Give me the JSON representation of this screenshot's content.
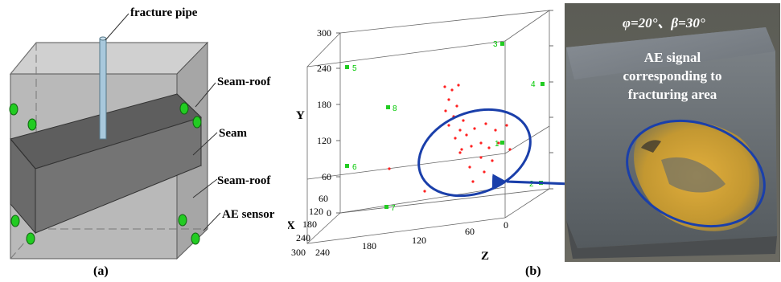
{
  "panel_a": {
    "caption": "(a)",
    "labels": {
      "fracture_pipe": "fracture pipe",
      "seam_roof_top": "Seam-roof",
      "seam": "Seam",
      "seam_roof_bottom": "Seam-roof",
      "ae_sensor": "AE sensor"
    },
    "colors": {
      "box": "#b8b8b8",
      "seam": "#6e6e6e",
      "sensor": "#22cc22",
      "pipe": "#9fc1d8"
    }
  },
  "panel_b": {
    "caption": "(b)",
    "axes": {
      "y_label": "Y",
      "x_label": "X",
      "z_label": "Z",
      "y_ticks": [
        "300",
        "240",
        "180",
        "120",
        "60",
        "0"
      ],
      "x_ticks": [
        "60",
        "120",
        "180",
        "240",
        "300"
      ],
      "z_ticks": [
        "240",
        "180",
        "120",
        "60",
        "0"
      ]
    },
    "sensor_labels": [
      "5",
      "8",
      "6",
      "7",
      "3",
      "4",
      "1",
      "2"
    ],
    "colors": {
      "events": "#ff2020",
      "sensors": "#22cc22",
      "ellipse": "#1a3faa"
    }
  },
  "panel_photo": {
    "angles": "φ=20°、β=30°",
    "annotation_line1": "AE signal",
    "annotation_line2": "corresponding to",
    "annotation_line3": "fracturing area",
    "colors": {
      "rock": "#7a7f84",
      "fracture_zone": "#d8a830",
      "ellipse": "#1a3faa",
      "text": "#ffffff"
    }
  }
}
